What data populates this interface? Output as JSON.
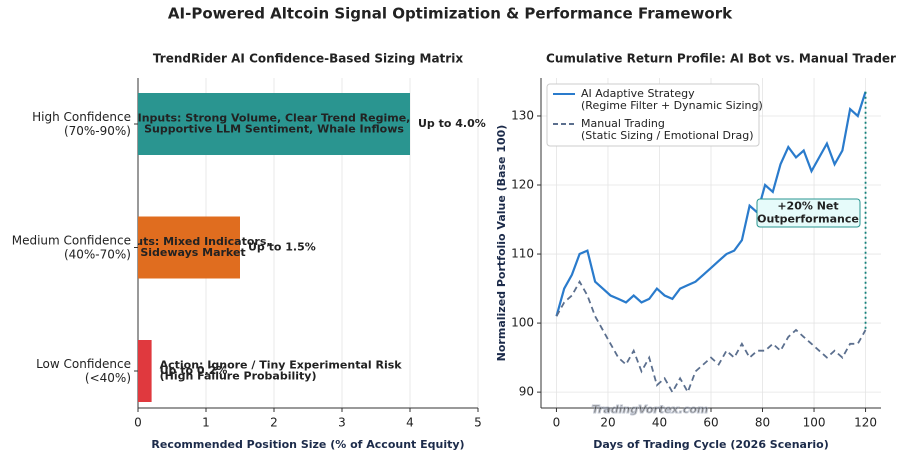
{
  "title": "AI-Powered Altcoin Signal Optimization & Performance Framework",
  "chart_data": [
    {
      "type": "hbar",
      "title": "TrendRider AI Confidence-Based Sizing Matrix",
      "xlabel": "Recommended Position Size (% of Account Equity)",
      "categories": [
        "High Confidence\n(70%-90%)",
        "Medium Confidence\n(40%-70%)",
        "Low Confidence\n(<40%)"
      ],
      "values": [
        4.0,
        1.5,
        0.2
      ],
      "value_labels": [
        "Up to 4.0%",
        "Up to 1.5%",
        "Up to 0.2%"
      ],
      "colors": [
        "#2a9590",
        "#e06d1f",
        "#e0393e"
      ],
      "annotations": [
        "Inputs: Strong Volume, Clear Trend Regime,\nSupportive LLM Sentiment, Whale Inflows",
        "Inputs: Mixed Indicators,\nSideways Market",
        "Action: Ignore / Tiny Experimental Risk\n(High Failure Probability)"
      ],
      "xlim": [
        0,
        5
      ],
      "xticks": [
        0,
        1,
        2,
        3,
        4,
        5
      ],
      "grid": true
    },
    {
      "type": "line",
      "title": "Cumulative Return Profile: AI Bot vs. Manual Trader",
      "xlabel": "Days of Trading Cycle (2026 Scenario)",
      "ylabel": "Normalized Portfolio Value (Base 100)",
      "x": [
        0,
        3,
        6,
        9,
        12,
        15,
        18,
        21,
        24,
        27,
        30,
        33,
        36,
        39,
        42,
        45,
        48,
        51,
        54,
        57,
        60,
        63,
        66,
        69,
        72,
        75,
        78,
        81,
        84,
        87,
        90,
        93,
        96,
        99,
        102,
        105,
        108,
        111,
        114,
        117,
        120
      ],
      "series": [
        {
          "name": "AI Adaptive Strategy\n(Regime Filter + Dynamic Sizing)",
          "color": "#2a7bcc",
          "dash": false,
          "values": [
            101,
            105,
            107,
            110,
            110.5,
            106,
            105,
            104,
            103.5,
            103,
            104,
            103,
            103.5,
            105,
            104,
            103.5,
            105,
            105.5,
            106,
            107,
            108,
            109,
            110,
            110.5,
            112,
            117,
            116,
            120,
            119,
            123,
            125.5,
            124,
            125,
            122,
            124,
            126,
            123,
            125,
            131,
            130,
            133.5
          ]
        },
        {
          "name": "Manual Trading\n(Static Sizing / Emotional Drag)",
          "color": "#5b6f8e",
          "dash": true,
          "values": [
            101,
            103,
            104,
            106,
            104,
            101,
            99,
            97,
            95,
            94,
            96,
            93,
            95,
            91,
            92,
            90,
            92,
            90,
            93,
            94,
            95,
            94,
            96,
            95,
            97,
            95,
            96,
            96,
            97,
            96,
            98,
            99,
            98,
            97,
            96,
            95,
            96,
            95,
            97,
            97,
            99
          ]
        }
      ],
      "annotation": "+20% Net\nOutperformance",
      "xlim": [
        -6,
        126
      ],
      "xticks": [
        0,
        20,
        40,
        60,
        80,
        100,
        120
      ],
      "ylim": [
        87.7,
        135.5
      ],
      "yticks": [
        90,
        100,
        110,
        120,
        130
      ],
      "grid": true,
      "legend": "upper left"
    }
  ],
  "watermark": "TradingVortex.com"
}
